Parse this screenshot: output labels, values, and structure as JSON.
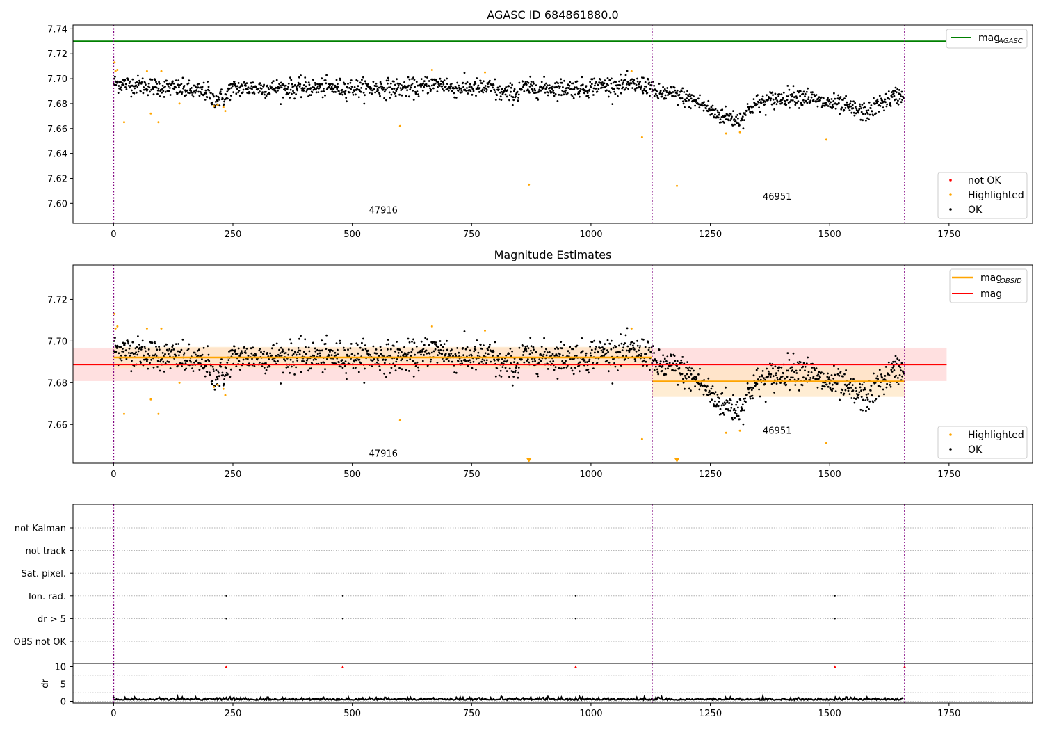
{
  "colors": {
    "ok": "#000000",
    "highlighted": "#ffa500",
    "not_ok": "#ff0000",
    "agasc": "#008000",
    "obsid": "#ffa500",
    "mean": "#ff0000",
    "boundary": "#800080",
    "band_red": "#ffcccc",
    "band_orange": "#ffe6c0"
  },
  "chart_data": [
    {
      "id": "agasc",
      "type": "scatter",
      "title": "AGASC ID 684861880.0",
      "xlim": [
        -85,
        1925
      ],
      "ylim": [
        7.584,
        7.743
      ],
      "xticks": [
        0,
        250,
        500,
        750,
        1000,
        1250,
        1500,
        1750
      ],
      "yticks": [
        7.6,
        7.62,
        7.64,
        7.66,
        7.68,
        7.7,
        7.72,
        7.74
      ],
      "ytick_labels": [
        "7.60",
        "7.62",
        "7.64",
        "7.66",
        "7.68",
        "7.70",
        "7.72",
        "7.74"
      ],
      "obsid_boundaries": [
        0,
        1128,
        1657
      ],
      "obsid_labels": [
        {
          "text": "47916",
          "x": 565,
          "y": 7.592
        },
        {
          "text": "46951",
          "x": 1390,
          "y": 7.603
        }
      ],
      "agasc_mag": 7.73,
      "agasc_line_x": [
        -85,
        1745
      ],
      "legend_top": [
        {
          "label": "mag",
          "sub": "AGASC",
          "color": "#008000"
        }
      ],
      "legend_bottom": [
        {
          "label": "not OK",
          "color": "#ff0000"
        },
        {
          "label": "Highlighted",
          "color": "#ffa500"
        },
        {
          "label": "OK",
          "color": "#000000"
        }
      ],
      "highlighted": [
        [
          2,
          7.713
        ],
        [
          4,
          7.706
        ],
        [
          8,
          7.707
        ],
        [
          22,
          7.665
        ],
        [
          70,
          7.706
        ],
        [
          78,
          7.672
        ],
        [
          94,
          7.665
        ],
        [
          100,
          7.706
        ],
        [
          138,
          7.68
        ],
        [
          210,
          7.678
        ],
        [
          218,
          7.679
        ],
        [
          230,
          7.677
        ],
        [
          234,
          7.674
        ],
        [
          600,
          7.662
        ],
        [
          667,
          7.707
        ],
        [
          778,
          7.705
        ],
        [
          870,
          7.615
        ],
        [
          1085,
          7.706
        ],
        [
          1107,
          7.653
        ],
        [
          1180,
          7.614
        ],
        [
          1283,
          7.656
        ],
        [
          1312,
          7.657
        ],
        [
          1493,
          7.651
        ]
      ]
    },
    {
      "id": "estimates",
      "type": "scatter",
      "title": "Magnitude Estimates",
      "xlim": [
        -85,
        1925
      ],
      "ylim": [
        7.6414,
        7.7365
      ],
      "xticks": [
        0,
        250,
        500,
        750,
        1000,
        1250,
        1500,
        1750
      ],
      "yticks": [
        7.66,
        7.68,
        7.7,
        7.72
      ],
      "ytick_labels": [
        "7.66",
        "7.68",
        "7.70",
        "7.72"
      ],
      "obsid_boundaries": [
        0,
        1128,
        1657
      ],
      "obsid_labels": [
        {
          "text": "47916",
          "x": 565,
          "y": 7.6445
        },
        {
          "text": "46951",
          "x": 1390,
          "y": 7.6555
        }
      ],
      "mean_mag": 7.6887,
      "mean_band": [
        7.6808,
        7.6968
      ],
      "mean_x": [
        -85,
        1745
      ],
      "obsid_mags": [
        {
          "x": [
            0,
            1128
          ],
          "mag": 7.6921,
          "band": [
            7.687,
            7.6972
          ]
        },
        {
          "x": [
            1128,
            1657
          ],
          "mag": 7.6806,
          "band": [
            7.6732,
            7.688
          ]
        }
      ],
      "legend_top": [
        {
          "label": "mag",
          "sub": "OBSID",
          "color": "#ffa500"
        },
        {
          "label": "mag",
          "sub": "",
          "color": "#ff0000"
        }
      ],
      "legend_bottom": [
        {
          "label": "Highlighted",
          "color": "#ffa500"
        },
        {
          "label": "OK",
          "color": "#000000"
        }
      ],
      "off_scale_markers": [
        870,
        1180
      ],
      "highlighted": [
        [
          2,
          7.713
        ],
        [
          4,
          7.706
        ],
        [
          8,
          7.707
        ],
        [
          22,
          7.665
        ],
        [
          70,
          7.706
        ],
        [
          78,
          7.672
        ],
        [
          94,
          7.665
        ],
        [
          100,
          7.706
        ],
        [
          138,
          7.68
        ],
        [
          210,
          7.678
        ],
        [
          218,
          7.679
        ],
        [
          230,
          7.677
        ],
        [
          234,
          7.674
        ],
        [
          600,
          7.662
        ],
        [
          667,
          7.707
        ],
        [
          778,
          7.705
        ],
        [
          1085,
          7.706
        ],
        [
          1107,
          7.653
        ],
        [
          1283,
          7.656
        ],
        [
          1312,
          7.657
        ],
        [
          1493,
          7.651
        ]
      ]
    },
    {
      "id": "flags",
      "type": "scatter",
      "xlim": [
        -85,
        1925
      ],
      "xticks": [
        0,
        250,
        500,
        750,
        1000,
        1250,
        1500,
        1750
      ],
      "obsid_boundaries": [
        0,
        1128,
        1657
      ],
      "categories": [
        "not Kalman",
        "not track",
        "Sat. pixel.",
        "Ion. rad.",
        "dr > 5",
        "OBS not OK"
      ],
      "flag_points": [
        {
          "category": "Ion. rad.",
          "x": [
            236,
            480,
            968,
            1511
          ]
        },
        {
          "category": "dr > 5",
          "x": [
            236,
            480,
            968,
            1511
          ]
        }
      ],
      "dr": {
        "ylabel": "dr",
        "ylim": [
          -0.5,
          10.5
        ],
        "yticks": [
          0,
          5,
          10
        ],
        "ytick_labels": [
          "0",
          "5",
          "10"
        ],
        "clipped_x": [
          236,
          480,
          968,
          1511,
          1657
        ]
      }
    }
  ]
}
